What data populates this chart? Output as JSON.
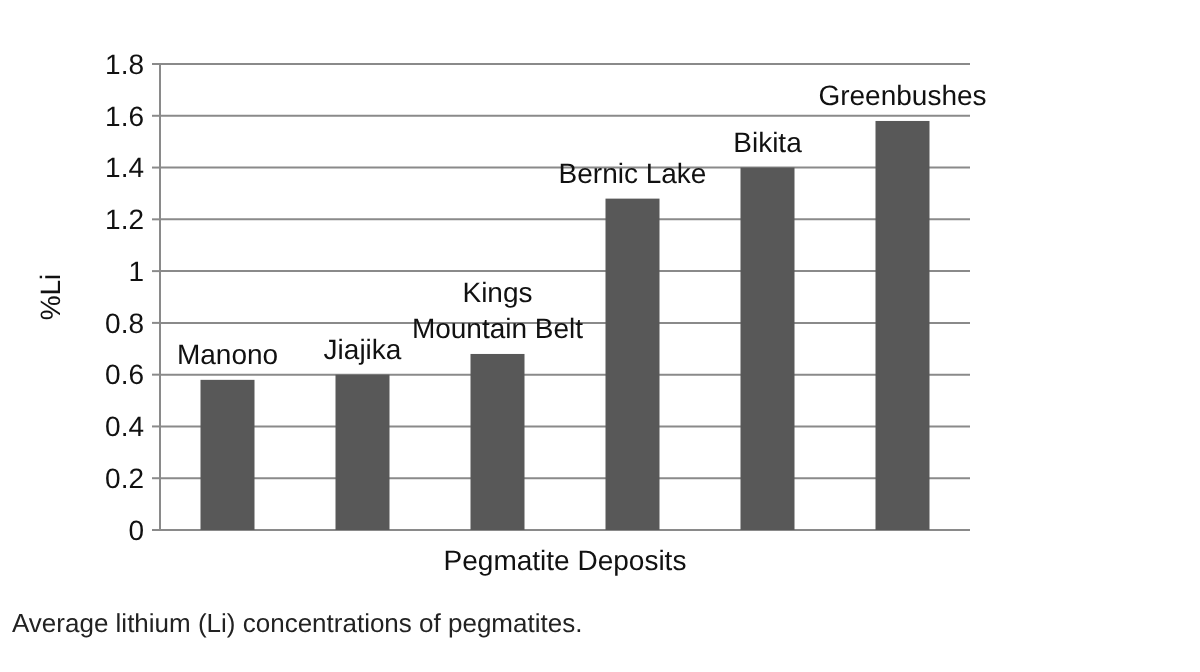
{
  "chart_data": {
    "type": "bar",
    "xlabel": "Pegmatite Deposits",
    "ylabel": "%Li",
    "categories": [
      "Manono",
      "Jiajika",
      "Kings Mountain Belt",
      "Bernic Lake",
      "Bikita",
      "Greenbushes"
    ],
    "values": [
      0.58,
      0.6,
      0.68,
      1.28,
      1.4,
      1.58
    ],
    "color": "#585858",
    "ylim": [
      0,
      1.8
    ],
    "yticks": [
      0,
      0.2,
      0.4,
      0.6,
      0.8,
      1,
      1.2,
      1.4,
      1.6,
      1.8
    ],
    "grid": "y",
    "annotations": [
      "Average lithium (Li) concentrations of pegmatites."
    ]
  }
}
